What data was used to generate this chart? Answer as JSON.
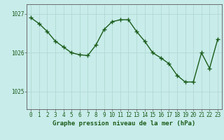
{
  "x": [
    0,
    1,
    2,
    3,
    4,
    5,
    6,
    7,
    8,
    9,
    10,
    11,
    12,
    13,
    14,
    15,
    16,
    17,
    18,
    19,
    20,
    21,
    22,
    23
  ],
  "y": [
    1026.9,
    1026.75,
    1026.55,
    1026.3,
    1026.15,
    1026.0,
    1025.95,
    1025.93,
    1026.2,
    1026.6,
    1026.8,
    1026.85,
    1026.85,
    1026.55,
    1026.3,
    1026.0,
    1025.87,
    1025.72,
    1025.42,
    1025.25,
    1025.25,
    1026.0,
    1025.6,
    1026.35
  ],
  "line_color": "#1a5c1a",
  "marker": "+",
  "marker_size": 4,
  "marker_linewidth": 1.0,
  "bg_color": "#c8ecea",
  "grid_color": "#aed4d0",
  "axis_color": "#5a5a5a",
  "label_color": "#1a5c1a",
  "xlabel": "Graphe pression niveau de la mer (hPa)",
  "xlabel_fontsize": 6.5,
  "ytick_labels": [
    "1025",
    "1026",
    "1027"
  ],
  "ytick_values": [
    1025,
    1026,
    1027
  ],
  "ylim": [
    1024.55,
    1027.25
  ],
  "xlim": [
    -0.5,
    23.5
  ],
  "xtick_values": [
    0,
    1,
    2,
    3,
    4,
    5,
    6,
    7,
    8,
    9,
    10,
    11,
    12,
    13,
    14,
    15,
    16,
    17,
    18,
    19,
    20,
    21,
    22,
    23
  ],
  "tick_fontsize": 5.5,
  "line_width": 1.0
}
